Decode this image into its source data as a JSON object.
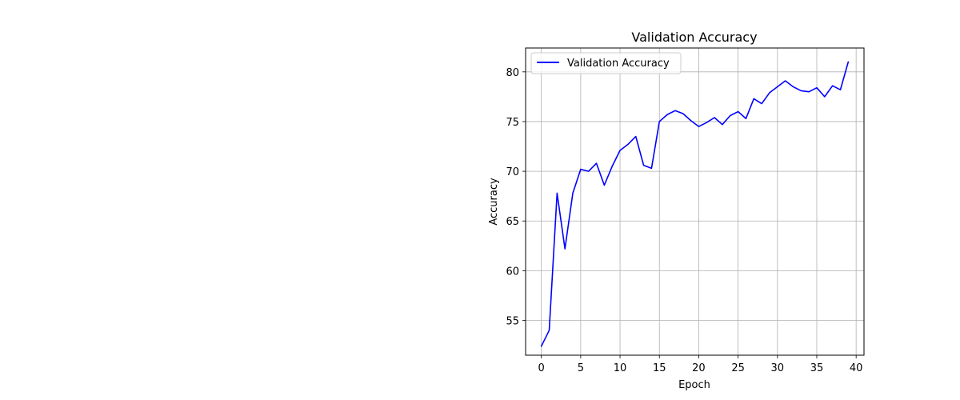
{
  "chart_data": {
    "type": "line",
    "title": "Validation Accuracy",
    "xlabel": "Epoch",
    "ylabel": "Accuracy",
    "xlim": [
      -2,
      41
    ],
    "ylim": [
      51.5,
      82.4
    ],
    "xticks": [
      0,
      5,
      10,
      15,
      20,
      25,
      30,
      35,
      40
    ],
    "yticks": [
      55,
      60,
      65,
      70,
      75,
      80
    ],
    "grid": true,
    "legend_position": "top-left",
    "series": [
      {
        "name": "Validation Accuracy",
        "color": "#0000ff",
        "x": [
          0,
          1,
          2,
          3,
          4,
          5,
          6,
          7,
          8,
          9,
          10,
          11,
          12,
          13,
          14,
          15,
          16,
          17,
          18,
          19,
          20,
          21,
          22,
          23,
          24,
          25,
          26,
          27,
          28,
          29,
          30,
          31,
          32,
          33,
          34,
          35,
          36,
          37,
          38,
          39
        ],
        "values": [
          52.4,
          54.0,
          67.8,
          62.2,
          67.8,
          70.2,
          70.0,
          70.8,
          68.6,
          70.5,
          72.1,
          72.7,
          73.5,
          70.6,
          70.3,
          75.0,
          75.7,
          76.1,
          75.8,
          75.1,
          74.5,
          74.9,
          75.4,
          74.7,
          75.6,
          76.0,
          75.3,
          77.3,
          76.8,
          77.9,
          78.5,
          79.1,
          78.5,
          78.1,
          78.0,
          78.4,
          77.5,
          78.6,
          78.2,
          81.0
        ]
      }
    ]
  }
}
